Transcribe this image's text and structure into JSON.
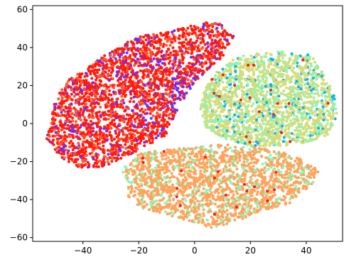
{
  "chart_data": {
    "type": "scatter",
    "title": "",
    "xlabel": "",
    "ylabel": "",
    "xlim": [
      -58,
      53
    ],
    "ylim": [
      -62,
      62
    ],
    "xticks": [
      -40,
      -20,
      0,
      20,
      40
    ],
    "yticks": [
      -60,
      -40,
      -20,
      0,
      20,
      40,
      60
    ],
    "xtick_labels": [
      "−40",
      "−20",
      "0",
      "20",
      "40"
    ],
    "ytick_labels": [
      "−60",
      "−40",
      "−20",
      "0",
      "20",
      "40",
      "60"
    ],
    "grid": false,
    "legend": "none",
    "clusters": [
      {
        "region": "upper-left",
        "center": [
          -20,
          22
        ],
        "extent": "roughly x −52 to 14, y −24 to 55",
        "colors": [
          "#ff1a0d",
          "#ff5533",
          "#6a2cff"
        ]
      },
      {
        "region": "right",
        "center": [
          28,
          10
        ],
        "extent": "roughly x 2 to 50, y −12 to 38",
        "colors": [
          "#d4dc7a",
          "#8cf5b5",
          "#0fb1e8"
        ]
      },
      {
        "region": "bottom",
        "center": [
          10,
          -34
        ],
        "extent": "roughly x −25 to 45, y −55 to −12",
        "colors": [
          "#ffa35c",
          "#8cf5b5"
        ]
      }
    ]
  }
}
